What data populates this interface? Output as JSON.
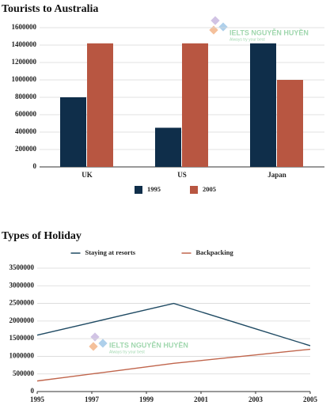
{
  "chart_data": [
    {
      "type": "bar",
      "title": "Tourists to Australia",
      "categories": [
        "UK",
        "US",
        "Japan"
      ],
      "series": [
        {
          "name": "1995",
          "color": "#0f2e4a",
          "values": [
            800000,
            450000,
            1420000
          ]
        },
        {
          "name": "2005",
          "color": "#b85641",
          "values": [
            1420000,
            1420000,
            1000000
          ]
        }
      ],
      "ylim": [
        0,
        1600000
      ],
      "yticks": [
        0,
        200000,
        400000,
        600000,
        800000,
        1000000,
        1200000,
        1400000,
        1600000
      ],
      "grid": true,
      "legend": "bottom"
    },
    {
      "type": "line",
      "title": "Types of Holiday",
      "x": [
        1995,
        1996,
        1997,
        1998,
        1999,
        2000,
        2001,
        2002,
        2003,
        2004,
        2005
      ],
      "series": [
        {
          "name": "Staying at resorts",
          "color": "#1f4a63",
          "values": [
            1600000,
            1780000,
            1960000,
            2140000,
            2320000,
            2500000,
            2260000,
            2020000,
            1780000,
            1540000,
            1300000
          ]
        },
        {
          "name": "Backpacking",
          "color": "#c0654c",
          "values": [
            300000,
            400000,
            500000,
            600000,
            700000,
            800000,
            880000,
            960000,
            1040000,
            1120000,
            1200000
          ]
        }
      ],
      "xlim": [
        1995,
        2005
      ],
      "xticks": [
        1995,
        1997,
        1999,
        2001,
        2003,
        2005
      ],
      "ylim": [
        0,
        3500000
      ],
      "yticks": [
        0,
        500000,
        1000000,
        1500000,
        2000000,
        2500000,
        3000000,
        3500000
      ],
      "grid": true,
      "legend": "top"
    }
  ],
  "watermark": {
    "name": "IELTS NGUYỄN HUYỀN",
    "slogan": "Always try your best"
  }
}
